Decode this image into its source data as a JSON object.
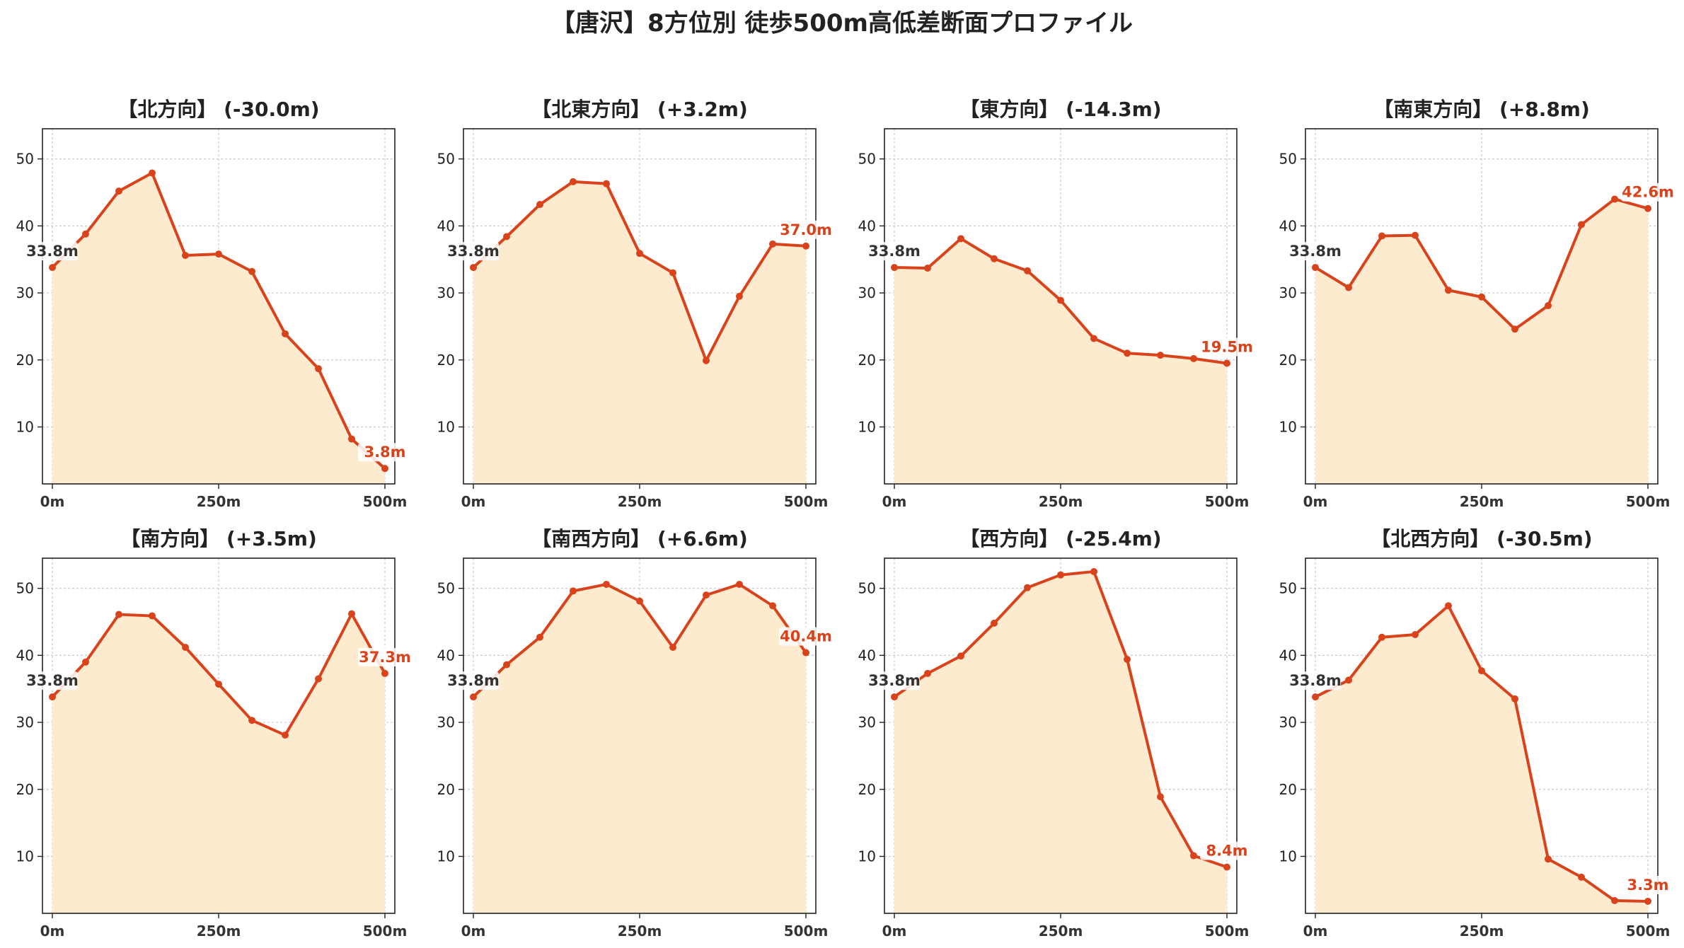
{
  "title": "【唐沢】8方位別 徒歩500m高低差断面プロファイル",
  "colors": {
    "line": "#d9431c",
    "fill": "#fdebd0",
    "grid": "#cccccc",
    "axis": "#222222",
    "start_label": "#333333"
  },
  "chart_data": [
    {
      "type": "area",
      "title": "【北方向】 (-30.0m)",
      "x": [
        0,
        50,
        100,
        150,
        200,
        250,
        300,
        350,
        400,
        450,
        500
      ],
      "x_tick_labels": [
        "0m",
        "250m",
        "500m"
      ],
      "y": [
        33.8,
        38.8,
        45.2,
        47.9,
        35.6,
        35.8,
        33.2,
        23.9,
        18.7,
        8.2,
        3.8
      ],
      "y_ticks": [
        10,
        20,
        30,
        40,
        50
      ],
      "ylim": [
        1.5,
        54.5
      ],
      "start_label": "33.8m",
      "end_label": "3.8m",
      "grid": true
    },
    {
      "type": "area",
      "title": "【北東方向】 (+3.2m)",
      "x": [
        0,
        50,
        100,
        150,
        200,
        250,
        300,
        350,
        400,
        450,
        500
      ],
      "x_tick_labels": [
        "0m",
        "250m",
        "500m"
      ],
      "y": [
        33.8,
        38.4,
        43.2,
        46.6,
        46.3,
        35.9,
        33.0,
        19.9,
        29.5,
        37.3,
        37.0
      ],
      "y_ticks": [
        10,
        20,
        30,
        40,
        50
      ],
      "ylim": [
        1.5,
        54.5
      ],
      "start_label": "33.8m",
      "end_label": "37.0m",
      "grid": true
    },
    {
      "type": "area",
      "title": "【東方向】 (-14.3m)",
      "x": [
        0,
        50,
        100,
        150,
        200,
        250,
        300,
        350,
        400,
        450,
        500
      ],
      "x_tick_labels": [
        "0m",
        "250m",
        "500m"
      ],
      "y": [
        33.8,
        33.7,
        38.1,
        35.1,
        33.3,
        28.9,
        23.2,
        21.0,
        20.7,
        20.2,
        19.5
      ],
      "y_ticks": [
        10,
        20,
        30,
        40,
        50
      ],
      "ylim": [
        1.5,
        54.5
      ],
      "start_label": "33.8m",
      "end_label": "19.5m",
      "grid": true
    },
    {
      "type": "area",
      "title": "【南東方向】 (+8.8m)",
      "x": [
        0,
        50,
        100,
        150,
        200,
        250,
        300,
        350,
        400,
        450,
        500
      ],
      "x_tick_labels": [
        "0m",
        "250m",
        "500m"
      ],
      "y": [
        33.8,
        30.8,
        38.5,
        38.6,
        30.4,
        29.4,
        24.6,
        28.1,
        40.2,
        44.0,
        42.6
      ],
      "y_ticks": [
        10,
        20,
        30,
        40,
        50
      ],
      "ylim": [
        1.5,
        54.5
      ],
      "start_label": "33.8m",
      "end_label": "42.6m",
      "grid": true
    },
    {
      "type": "area",
      "title": "【南方向】 (+3.5m)",
      "x": [
        0,
        50,
        100,
        150,
        200,
        250,
        300,
        350,
        400,
        450,
        500
      ],
      "x_tick_labels": [
        "0m",
        "250m",
        "500m"
      ],
      "y": [
        33.8,
        39.0,
        46.1,
        45.9,
        41.2,
        35.7,
        30.3,
        28.1,
        36.5,
        46.2,
        37.3
      ],
      "y_ticks": [
        10,
        20,
        30,
        40,
        50
      ],
      "ylim": [
        1.5,
        54.5
      ],
      "start_label": "33.8m",
      "end_label": "37.3m",
      "grid": true
    },
    {
      "type": "area",
      "title": "【南西方向】 (+6.6m)",
      "x": [
        0,
        50,
        100,
        150,
        200,
        250,
        300,
        350,
        400,
        450,
        500
      ],
      "x_tick_labels": [
        "0m",
        "250m",
        "500m"
      ],
      "y": [
        33.8,
        38.6,
        42.7,
        49.6,
        50.6,
        48.1,
        41.2,
        49.0,
        50.6,
        47.4,
        40.4
      ],
      "y_ticks": [
        10,
        20,
        30,
        40,
        50
      ],
      "ylim": [
        1.5,
        54.5
      ],
      "start_label": "33.8m",
      "end_label": "40.4m",
      "grid": true
    },
    {
      "type": "area",
      "title": "【西方向】 (-25.4m)",
      "x": [
        0,
        50,
        100,
        150,
        200,
        250,
        300,
        350,
        400,
        450,
        500
      ],
      "x_tick_labels": [
        "0m",
        "250m",
        "500m"
      ],
      "y": [
        33.8,
        37.3,
        39.9,
        44.8,
        50.1,
        52.0,
        52.5,
        39.4,
        18.9,
        10.1,
        8.4
      ],
      "y_ticks": [
        10,
        20,
        30,
        40,
        50
      ],
      "ylim": [
        1.5,
        54.5
      ],
      "start_label": "33.8m",
      "end_label": "8.4m",
      "grid": true
    },
    {
      "type": "area",
      "title": "【北西方向】 (-30.5m)",
      "x": [
        0,
        50,
        100,
        150,
        200,
        250,
        300,
        350,
        400,
        450,
        500
      ],
      "x_tick_labels": [
        "0m",
        "250m",
        "500m"
      ],
      "y": [
        33.8,
        36.3,
        42.7,
        43.1,
        47.4,
        37.7,
        33.5,
        9.6,
        6.9,
        3.4,
        3.3
      ],
      "y_ticks": [
        10,
        20,
        30,
        40,
        50
      ],
      "ylim": [
        1.5,
        54.5
      ],
      "start_label": "33.8m",
      "end_label": "3.3m",
      "grid": true
    }
  ]
}
